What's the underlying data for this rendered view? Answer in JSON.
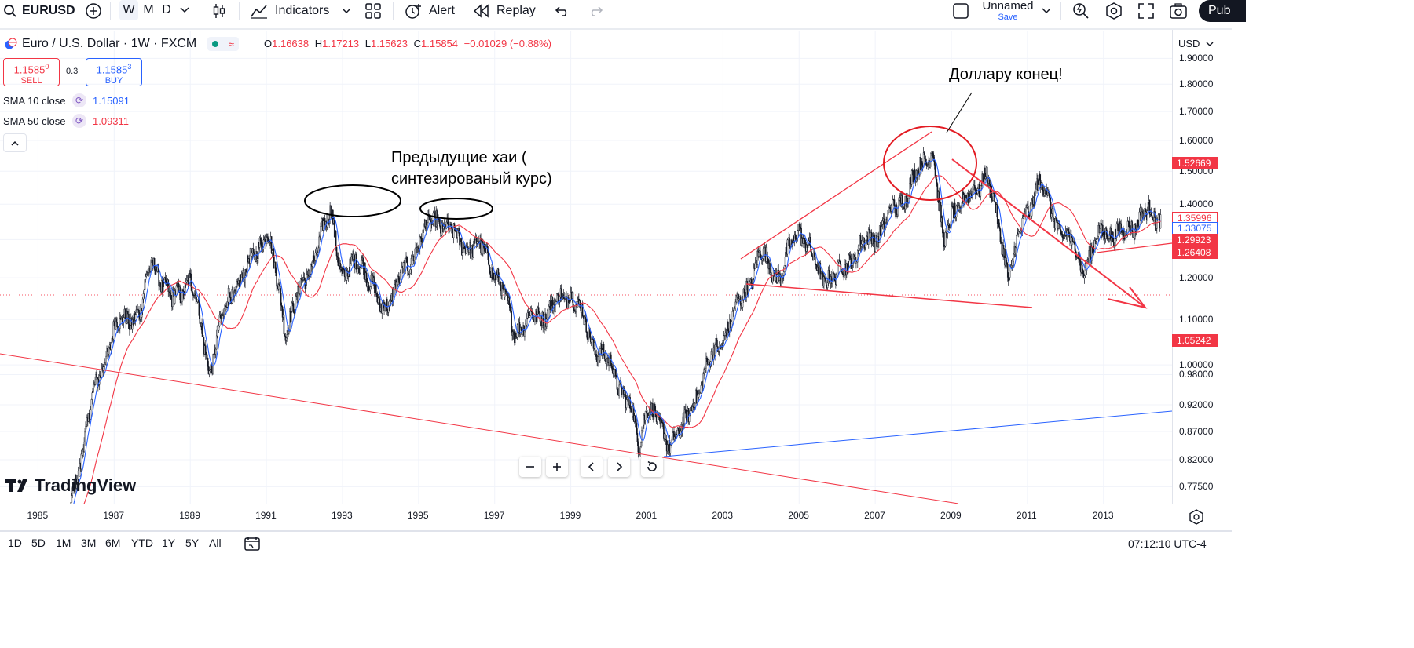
{
  "toolbar": {
    "symbol": "EURUSD",
    "timeframes": [
      "W",
      "M",
      "D"
    ],
    "active_timeframe": "W",
    "indicators_label": "Indicators",
    "alert_label": "Alert",
    "replay_label": "Replay",
    "layout_name": "Unnamed",
    "layout_save": "Save",
    "publish_label": "Pub"
  },
  "legend": {
    "title": "Euro / U.S. Dollar · 1W · FXCM",
    "open_label": "O",
    "open": "1.16638",
    "high_label": "H",
    "high": "1.17213",
    "low_label": "L",
    "low": "1.15623",
    "close_label": "C",
    "close": "1.15854",
    "change": "−0.01029 (−0.88%)",
    "sell_price_main": "1.1585",
    "sell_price_sup": "0",
    "sell_label": "SELL",
    "spread": "0.3",
    "buy_price_main": "1.1585",
    "buy_price_sup": "3",
    "buy_label": "BUY",
    "indicators": [
      {
        "name": "SMA 10 close",
        "value": "1.15091",
        "color": "#2962ff"
      },
      {
        "name": "SMA 50 close",
        "value": "1.09311",
        "color": "#f23645"
      }
    ]
  },
  "price_axis": {
    "currency": "USD",
    "ticks": [
      "1.90000",
      "1.80000",
      "1.70000",
      "1.60000",
      "1.50000",
      "1.40000",
      "1.30000",
      "1.20000",
      "1.10000",
      "1.00000",
      "0.98000",
      "0.92000",
      "0.87000",
      "0.82000",
      "0.77500"
    ],
    "tags": [
      {
        "label": "1.52669",
        "color": "#f23645"
      },
      {
        "label": "1.35996",
        "color": "#ffffff",
        "text": "#f23645"
      },
      {
        "label": "1.33075",
        "color": "#ffffff",
        "text": "#2962ff"
      },
      {
        "label": "1.29923",
        "color": "#f23645"
      },
      {
        "label": "1.26408",
        "color": "#f23645"
      },
      {
        "label": "1.05242",
        "color": "#f23645"
      }
    ]
  },
  "time_axis": {
    "years": [
      "1985",
      "1987",
      "1989",
      "1991",
      "1993",
      "1995",
      "1997",
      "1999",
      "2001",
      "2003",
      "2005",
      "2007",
      "2009",
      "2011",
      "2013"
    ]
  },
  "bottom_bar": {
    "ranges": [
      "1D",
      "5D",
      "1M",
      "3M",
      "6M",
      "YTD",
      "1Y",
      "5Y",
      "All"
    ],
    "clock": "07:12:10 UTC-4"
  },
  "annotations": {
    "prev_highs_line1": "Предыдущие хаи (",
    "prev_highs_line2": "синтезированый курс)",
    "dollar_end": "Доллару конец!"
  },
  "branding": {
    "logo_text": "TradingView"
  },
  "chart_data": {
    "type": "candlestick",
    "symbol": "EURUSD",
    "interval": "1W",
    "x_range": [
      "1984",
      "2014"
    ],
    "y_range": [
      0.73,
      1.93
    ],
    "y_scale": "log",
    "series": [
      {
        "name": "SMA 10 close",
        "color": "#2962ff"
      },
      {
        "name": "SMA 50 close",
        "color": "#f23645"
      }
    ],
    "close_path": [
      [
        1984.0,
        0.7
      ],
      [
        1985.8,
        0.72
      ],
      [
        1986.4,
        0.92
      ],
      [
        1987.0,
        1.08
      ],
      [
        1987.7,
        1.12
      ],
      [
        1988.0,
        1.25
      ],
      [
        1988.5,
        1.14
      ],
      [
        1989.0,
        1.2
      ],
      [
        1989.5,
        0.99
      ],
      [
        1990.0,
        1.15
      ],
      [
        1990.5,
        1.22
      ],
      [
        1991.0,
        1.33
      ],
      [
        1991.5,
        1.08
      ],
      [
        1992.0,
        1.19
      ],
      [
        1992.7,
        1.38
      ],
      [
        1993.0,
        1.2
      ],
      [
        1993.5,
        1.25
      ],
      [
        1994.0,
        1.12
      ],
      [
        1994.7,
        1.22
      ],
      [
        1995.0,
        1.3
      ],
      [
        1995.5,
        1.36
      ],
      [
        1996.0,
        1.3
      ],
      [
        1996.7,
        1.27
      ],
      [
        1997.0,
        1.22
      ],
      [
        1997.5,
        1.08
      ],
      [
        1998.0,
        1.1
      ],
      [
        1998.7,
        1.14
      ],
      [
        1999.0,
        1.17
      ],
      [
        1999.5,
        1.06
      ],
      [
        2000.0,
        1.0
      ],
      [
        2000.5,
        0.93
      ],
      [
        2000.8,
        0.84
      ],
      [
        2001.0,
        0.93
      ],
      [
        2001.5,
        0.85
      ],
      [
        2002.0,
        0.88
      ],
      [
        2002.5,
        0.98
      ],
      [
        2003.0,
        1.06
      ],
      [
        2003.5,
        1.15
      ],
      [
        2004.0,
        1.26
      ],
      [
        2004.5,
        1.2
      ],
      [
        2005.0,
        1.34
      ],
      [
        2005.5,
        1.21
      ],
      [
        2006.0,
        1.2
      ],
      [
        2006.5,
        1.27
      ],
      [
        2007.0,
        1.31
      ],
      [
        2007.5,
        1.38
      ],
      [
        2008.0,
        1.47
      ],
      [
        2008.5,
        1.58
      ],
      [
        2008.8,
        1.27
      ],
      [
        2009.0,
        1.38
      ],
      [
        2009.5,
        1.42
      ],
      [
        2009.9,
        1.5
      ],
      [
        2010.5,
        1.21
      ],
      [
        2011.0,
        1.38
      ],
      [
        2011.3,
        1.47
      ],
      [
        2011.8,
        1.34
      ],
      [
        2012.5,
        1.23
      ],
      [
        2013.0,
        1.33
      ],
      [
        2013.5,
        1.31
      ],
      [
        2014.0,
        1.37
      ],
      [
        2014.5,
        1.36
      ]
    ]
  }
}
